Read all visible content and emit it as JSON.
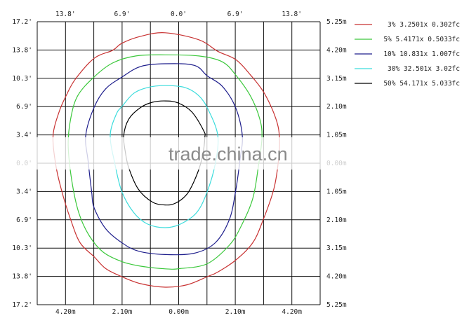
{
  "chart_data": {
    "type": "line",
    "subtype": "isolux-contour",
    "title": "",
    "top_tick_labels": [
      "13.8'",
      "6.9'",
      "0.0'",
      "6.9'",
      "13.8'"
    ],
    "bottom_tick_labels": [
      "4.20m",
      "2.10m",
      "0.00m",
      "2.10m",
      "4.20m"
    ],
    "left_tick_labels": [
      "17.2'",
      "13.8'",
      "10.3'",
      "6.9'",
      "3.4'",
      "0.0'",
      "3.4'",
      "6.9'",
      "10.3'",
      "13.8'",
      "17.2'"
    ],
    "right_tick_labels": [
      "5.25m",
      "4.20m",
      "3.15m",
      "2.10m",
      "1.05m",
      "0.00m",
      "1.05m",
      "2.10m",
      "3.15m",
      "4.20m",
      "5.25m"
    ],
    "xlim_m": [
      -5.25,
      5.25
    ],
    "ylim_m": [
      -5.25,
      5.25
    ],
    "grid": true,
    "legend_position": "right",
    "series": [
      {
        "name": "3% 3.2501x 0.302fc",
        "color": "#c83232",
        "points": [
          [
            -0.5,
            4.84
          ],
          [
            0.75,
            4.58
          ],
          [
            1.45,
            4.15
          ],
          [
            2.11,
            3.85
          ],
          [
            2.66,
            3.28
          ],
          [
            3.18,
            2.59
          ],
          [
            3.61,
            1.64
          ],
          [
            3.74,
            0.94
          ],
          [
            3.7,
            0.08
          ],
          [
            3.53,
            -0.96
          ],
          [
            3.14,
            -2.09
          ],
          [
            2.75,
            -2.95
          ],
          [
            2.11,
            -3.6
          ],
          [
            1.45,
            -4.04
          ],
          [
            1.06,
            -4.21
          ],
          [
            0.32,
            -4.51
          ],
          [
            -0.5,
            -4.6
          ],
          [
            -1.41,
            -4.47
          ],
          [
            -2.11,
            -4.21
          ],
          [
            -2.71,
            -3.91
          ],
          [
            -3.14,
            -3.47
          ],
          [
            -3.66,
            -2.95
          ],
          [
            -4.01,
            -2.09
          ],
          [
            -4.36,
            -0.96
          ],
          [
            -4.57,
            -0.01
          ],
          [
            -4.66,
            1.03
          ],
          [
            -4.44,
            1.9
          ],
          [
            -4.18,
            2.5
          ],
          [
            -3.84,
            3.11
          ],
          [
            -3.14,
            3.89
          ],
          [
            -2.45,
            4.19
          ],
          [
            -2.11,
            4.45
          ],
          [
            -1.41,
            4.71
          ]
        ]
      },
      {
        "name": "5% 5.4171x 0.5033fc",
        "color": "#3cc83c",
        "points": [
          [
            -0.5,
            4.02
          ],
          [
            0.75,
            3.98
          ],
          [
            1.62,
            3.76
          ],
          [
            2.11,
            3.28
          ],
          [
            2.66,
            2.5
          ],
          [
            3.01,
            1.64
          ],
          [
            3.09,
            0.94
          ],
          [
            2.96,
            -0.1
          ],
          [
            2.75,
            -1.31
          ],
          [
            2.31,
            -2.35
          ],
          [
            1.88,
            -3.04
          ],
          [
            1.06,
            -3.73
          ],
          [
            0.06,
            -3.91
          ],
          [
            -0.5,
            -3.92
          ],
          [
            -1.41,
            -3.82
          ],
          [
            -2.11,
            -3.65
          ],
          [
            -2.8,
            -3.3
          ],
          [
            -3.32,
            -2.69
          ],
          [
            -3.71,
            -1.83
          ],
          [
            -3.97,
            -0.62
          ],
          [
            -4.1,
            0.68
          ],
          [
            -4.01,
            1.64
          ],
          [
            -3.75,
            2.5
          ],
          [
            -3.14,
            3.2
          ],
          [
            -2.45,
            3.72
          ],
          [
            -1.59,
            3.98
          ]
        ]
      },
      {
        "name": "10% 10.831x 1.007fc",
        "color": "#1e1e8c",
        "points": [
          [
            -0.5,
            3.69
          ],
          [
            0.58,
            3.63
          ],
          [
            1.06,
            3.24
          ],
          [
            1.62,
            2.85
          ],
          [
            2.11,
            2.07
          ],
          [
            2.36,
            1.03
          ],
          [
            2.27,
            0.08
          ],
          [
            2.11,
            -1.05
          ],
          [
            1.88,
            -2.09
          ],
          [
            1.36,
            -2.95
          ],
          [
            0.58,
            -3.34
          ],
          [
            -0.5,
            -3.39
          ],
          [
            -1.5,
            -3.26
          ],
          [
            -2.11,
            -2.95
          ],
          [
            -2.71,
            -2.43
          ],
          [
            -3.14,
            -1.65
          ],
          [
            -3.23,
            -1.05
          ],
          [
            -3.36,
            0.08
          ],
          [
            -3.45,
            1.03
          ],
          [
            -3.14,
            2.07
          ],
          [
            -2.71,
            2.76
          ],
          [
            -2.1,
            3.2
          ],
          [
            -1.41,
            3.59
          ]
        ]
      },
      {
        "name": "30% 32.501x 3.02fc",
        "color": "#3cdcdc",
        "points": [
          [
            -0.5,
            2.88
          ],
          [
            0.23,
            2.81
          ],
          [
            0.75,
            2.5
          ],
          [
            1.1,
            1.98
          ],
          [
            1.45,
            1.03
          ],
          [
            1.36,
            -0.01
          ],
          [
            1.06,
            -1.05
          ],
          [
            0.67,
            -1.83
          ],
          [
            0.06,
            -2.26
          ],
          [
            -0.5,
            -2.39
          ],
          [
            -1.15,
            -2.26
          ],
          [
            -1.67,
            -1.83
          ],
          [
            -2.11,
            -1.05
          ],
          [
            -2.37,
            -0.01
          ],
          [
            -2.54,
            1.03
          ],
          [
            -2.32,
            1.81
          ],
          [
            -2.1,
            2.11
          ],
          [
            -1.67,
            2.59
          ],
          [
            -1.15,
            2.81
          ]
        ]
      },
      {
        "name": "50% 54.171x 5.033fc",
        "color": "#000000",
        "points": [
          [
            -0.5,
            2.31
          ],
          [
            -0.03,
            2.24
          ],
          [
            0.49,
            1.9
          ],
          [
            0.93,
            1.2
          ],
          [
            0.97,
            0.94
          ],
          [
            0.88,
            0.25
          ],
          [
            0.67,
            -0.44
          ],
          [
            0.32,
            -1.13
          ],
          [
            -0.11,
            -1.48
          ],
          [
            -0.5,
            -1.55
          ],
          [
            -0.98,
            -1.44
          ],
          [
            -1.5,
            -0.96
          ],
          [
            -1.85,
            -0.18
          ],
          [
            -1.98,
            0.42
          ],
          [
            -2.04,
            1.03
          ],
          [
            -1.85,
            1.64
          ],
          [
            -1.41,
            2.07
          ],
          [
            -0.98,
            2.26
          ]
        ]
      }
    ]
  },
  "watermark": "trade.china.cn"
}
